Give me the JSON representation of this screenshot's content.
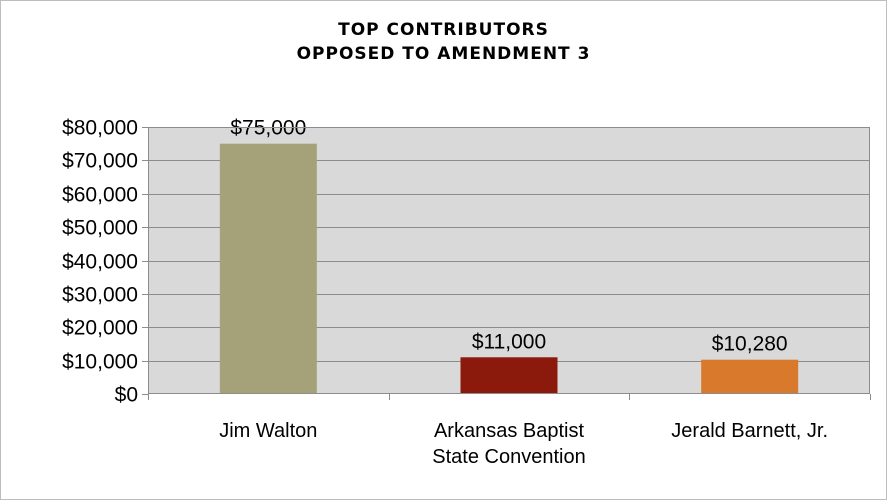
{
  "chart_data": {
    "type": "bar",
    "title_lines": [
      "TOP CONTRIBUTORS",
      "OPPOSED TO AMENDMENT 3"
    ],
    "categories": [
      [
        "Jim Walton"
      ],
      [
        "Arkansas Baptist",
        "State Convention"
      ],
      [
        "Jerald Barnett, Jr."
      ]
    ],
    "values": [
      75000,
      11000,
      10280
    ],
    "data_labels": [
      "$75,000",
      "$11,000",
      "$10,280"
    ],
    "colors": [
      "#a5a27a",
      "#8b1a0d",
      "#d9792b"
    ],
    "ylim": [
      0,
      80000
    ],
    "y_ticks": [
      0,
      10000,
      20000,
      30000,
      40000,
      50000,
      60000,
      70000,
      80000
    ],
    "y_tick_labels": [
      "$0",
      "$10,000",
      "$20,000",
      "$30,000",
      "$40,000",
      "$50,000",
      "$60,000",
      "$70,000",
      "$80,000"
    ],
    "plot_background": "#d9d9d9",
    "grid": true,
    "xlabel": "",
    "ylabel": ""
  }
}
